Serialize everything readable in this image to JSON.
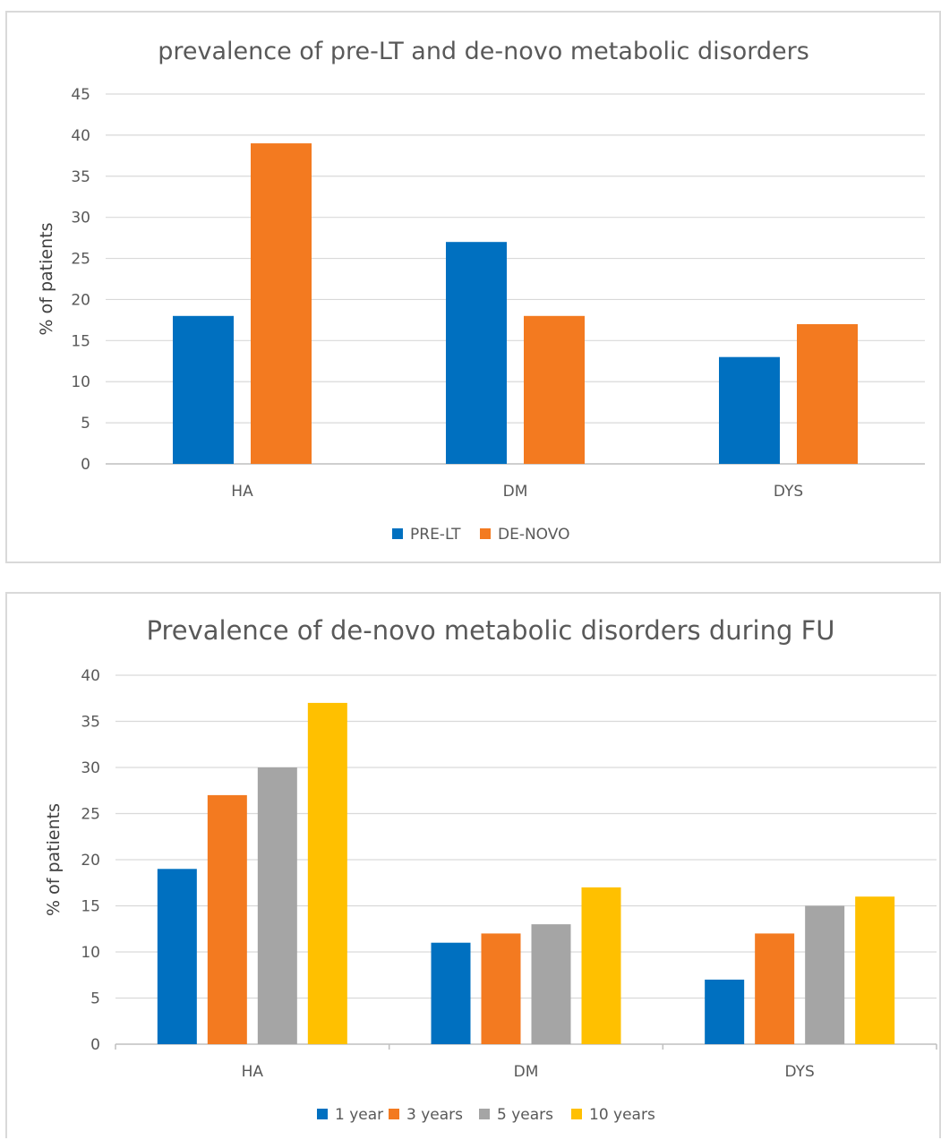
{
  "chart_data": [
    {
      "type": "bar",
      "title": "prevalence of pre-LT and de-novo metabolic disorders",
      "xlabel": "",
      "ylabel": "% of patients",
      "categories": [
        "HA",
        "DM",
        "DYS"
      ],
      "ylim": [
        0,
        45
      ],
      "yticks": [
        0,
        5,
        10,
        15,
        20,
        25,
        30,
        35,
        40,
        45
      ],
      "grid": true,
      "legend_position": "bottom",
      "series": [
        {
          "name": "PRE-LT",
          "color": "#0070c0",
          "values": [
            18,
            27,
            13
          ]
        },
        {
          "name": "DE-NOVO",
          "color": "#f37a20",
          "values": [
            39,
            18,
            17
          ]
        }
      ]
    },
    {
      "type": "bar",
      "title": "Prevalence of de-novo metabolic disorders during FU",
      "xlabel": "",
      "ylabel": "% of patients",
      "categories": [
        "HA",
        "DM",
        "DYS"
      ],
      "ylim": [
        0,
        40
      ],
      "yticks": [
        0,
        5,
        10,
        15,
        20,
        25,
        30,
        35,
        40
      ],
      "grid": true,
      "legend_position": "bottom",
      "series": [
        {
          "name": "1 year",
          "color": "#0070c0",
          "values": [
            19,
            11,
            7
          ]
        },
        {
          "name": "3 years",
          "color": "#f37a20",
          "values": [
            27,
            12,
            12
          ]
        },
        {
          "name": "5 years",
          "color": "#a5a5a5",
          "values": [
            30,
            13,
            15
          ]
        },
        {
          "name": "10 years",
          "color": "#ffc000",
          "values": [
            37,
            17,
            16
          ]
        }
      ]
    }
  ]
}
